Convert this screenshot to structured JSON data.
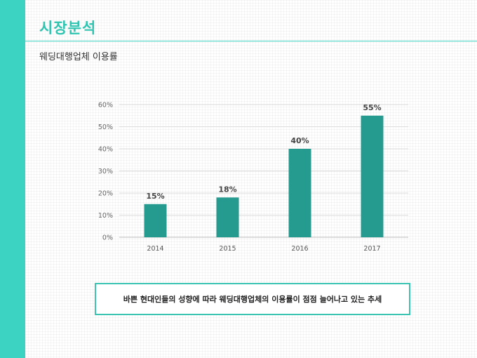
{
  "header": {
    "title": "시장분석",
    "subtitle": "웨딩대행업체 이용률"
  },
  "colors": {
    "accent": "#3cd3c2",
    "bar": "#259b8f"
  },
  "callout": {
    "text": "바쁜 현대인들의 성향에 따라 웨딩대행업체의 이용률이 점점 늘어나고 있는 추세"
  },
  "chart_data": {
    "type": "bar",
    "categories": [
      "2014",
      "2015",
      "2016",
      "2017"
    ],
    "values": [
      15,
      18,
      40,
      55
    ],
    "data_labels": [
      "15%",
      "18%",
      "40%",
      "55%"
    ],
    "y_ticks": [
      0,
      10,
      20,
      30,
      40,
      50,
      60
    ],
    "y_tick_labels": [
      "0%",
      "10%",
      "20%",
      "30%",
      "40%",
      "50%",
      "60%"
    ],
    "ylim": [
      0,
      60
    ],
    "grid": true,
    "legend": "none"
  }
}
